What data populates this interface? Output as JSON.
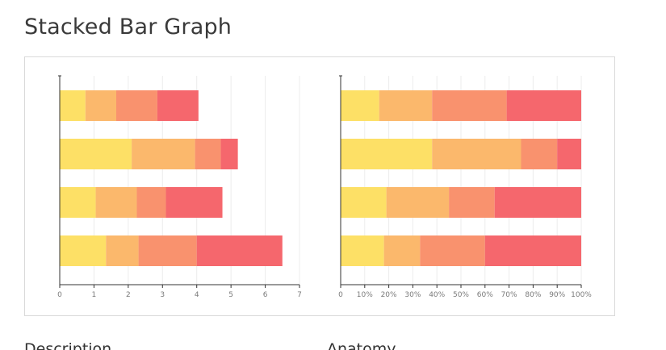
{
  "page": {
    "title": "Stacked Bar Graph",
    "sections": [
      "Description",
      "Anatomy"
    ]
  },
  "colors": [
    "#FDE066",
    "#FBB86C",
    "#F9926E",
    "#F5676D"
  ],
  "chart_data": [
    {
      "type": "bar",
      "orientation": "horizontal",
      "stacked": true,
      "series": [
        {
          "values": [
            0.75,
            2.1,
            1.05,
            1.35
          ]
        },
        {
          "values": [
            0.9,
            1.85,
            1.2,
            0.95
          ]
        },
        {
          "values": [
            1.2,
            0.75,
            0.85,
            1.7
          ]
        },
        {
          "values": [
            1.2,
            0.5,
            1.65,
            2.5
          ]
        }
      ],
      "xlim": [
        0,
        7
      ],
      "xticks": [
        "0",
        "1",
        "2",
        "3",
        "4",
        "5",
        "6",
        "7"
      ],
      "grid": true
    },
    {
      "type": "bar",
      "orientation": "horizontal",
      "stacked": true,
      "percent": true,
      "series": [
        {
          "values": [
            16,
            38,
            19,
            18
          ]
        },
        {
          "values": [
            22,
            37,
            26,
            15
          ]
        },
        {
          "values": [
            31,
            15,
            19,
            27
          ]
        },
        {
          "values": [
            31,
            10,
            36,
            40
          ]
        }
      ],
      "xlim": [
        0,
        100
      ],
      "xticks": [
        "0",
        "10%",
        "20%",
        "30%",
        "40%",
        "50%",
        "60%",
        "70%",
        "80%",
        "90%",
        "100%"
      ],
      "grid": true
    }
  ]
}
